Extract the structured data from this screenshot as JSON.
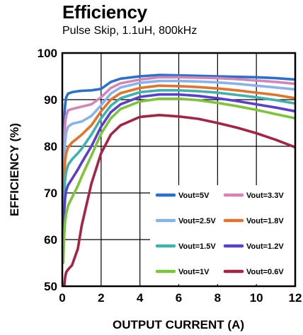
{
  "chart_data": {
    "type": "line",
    "title": "Efficiency",
    "subtitle": "Pulse Skip, 1.1uH, 800kHz",
    "xlabel": "OUTPUT CURRENT (A)",
    "ylabel": "EFFICIENCY (%)",
    "xlim": [
      0,
      12
    ],
    "ylim": [
      50,
      100
    ],
    "xticks": [
      0,
      2,
      4,
      6,
      8,
      10,
      12
    ],
    "yticks": [
      50,
      60,
      70,
      80,
      90,
      100
    ],
    "grid": true,
    "legend_position": "bottom-right",
    "series": [
      {
        "name": "Vout=5V",
        "color": "#2b6fd0",
        "x": [
          0.05,
          0.1,
          0.15,
          0.2,
          0.3,
          0.5,
          0.8,
          1,
          1.5,
          2,
          2.5,
          3,
          4,
          5,
          6,
          7,
          8,
          9,
          10,
          11,
          12
        ],
        "y": [
          80,
          86,
          89,
          90.5,
          91.3,
          91.6,
          91.8,
          91.9,
          92,
          92.3,
          93.8,
          94.5,
          95,
          95.3,
          95.2,
          95.1,
          95,
          94.9,
          94.8,
          94.6,
          94.3
        ]
      },
      {
        "name": "Vout=3.3V",
        "color": "#d385b5",
        "x": [
          0.05,
          0.1,
          0.15,
          0.2,
          0.3,
          0.5,
          0.8,
          1,
          1.5,
          2,
          2.5,
          3,
          4,
          5,
          6,
          7,
          8,
          9,
          10,
          11,
          12
        ],
        "y": [
          76,
          82,
          85,
          86.5,
          87.7,
          88,
          88.3,
          88.5,
          89,
          90.5,
          92.5,
          93.5,
          94.3,
          94.8,
          94.8,
          94.7,
          94.6,
          94.4,
          94.1,
          93.8,
          93.4
        ]
      },
      {
        "name": "Vout=2.5V",
        "color": "#86b3ea",
        "x": [
          0.05,
          0.1,
          0.15,
          0.2,
          0.3,
          0.5,
          0.8,
          1,
          1.5,
          2,
          2.5,
          3,
          4,
          5,
          6,
          7,
          8,
          9,
          10,
          11,
          12
        ],
        "y": [
          72,
          78,
          81,
          83,
          84.2,
          84.8,
          85.1,
          85.3,
          86.5,
          88.8,
          91.3,
          92.6,
          93.6,
          94,
          94,
          93.9,
          93.7,
          93.4,
          93,
          92.6,
          92.2
        ]
      },
      {
        "name": "Vout=1.8V",
        "color": "#e2732c",
        "x": [
          0.05,
          0.1,
          0.15,
          0.2,
          0.3,
          0.5,
          0.8,
          1,
          1.5,
          2,
          2.5,
          3,
          4,
          5,
          6,
          7,
          8,
          9,
          10,
          11,
          12
        ],
        "y": [
          68,
          74,
          77,
          78.5,
          79.8,
          80.8,
          81.8,
          82.5,
          84.5,
          87.5,
          90,
          91.4,
          92.5,
          93,
          92.9,
          92.7,
          92.4,
          92,
          91.5,
          91,
          90.3
        ]
      },
      {
        "name": "Vout=1.5V",
        "color": "#3fb1ae",
        "x": [
          0.05,
          0.1,
          0.15,
          0.2,
          0.3,
          0.5,
          0.8,
          1,
          1.5,
          2,
          2.5,
          3,
          4,
          5,
          6,
          7,
          8,
          9,
          10,
          11,
          12
        ],
        "y": [
          64,
          70,
          73,
          74.5,
          76,
          77.2,
          78.5,
          79.5,
          82.5,
          86,
          88.7,
          90.3,
          91.6,
          92,
          92,
          91.8,
          91.5,
          91,
          90.5,
          89.9,
          89.2
        ]
      },
      {
        "name": "Vout=1.2V",
        "color": "#5a3fcf",
        "x": [
          0.05,
          0.1,
          0.15,
          0.2,
          0.3,
          0.5,
          0.8,
          1,
          1.5,
          2,
          2.5,
          3,
          4,
          5,
          6,
          7,
          8,
          9,
          10,
          11,
          12
        ],
        "y": [
          60,
          66,
          69,
          70.5,
          71.7,
          73,
          75,
          76.5,
          80,
          84.2,
          87.3,
          89,
          90.6,
          91.1,
          91.1,
          90.8,
          90.3,
          89.7,
          89,
          88.3,
          87.5
        ]
      },
      {
        "name": "Vout=1V",
        "color": "#7bc43c",
        "x": [
          0.05,
          0.1,
          0.15,
          0.2,
          0.3,
          0.5,
          0.8,
          1,
          1.5,
          2,
          2.5,
          3,
          4,
          5,
          6,
          7,
          8,
          9,
          10,
          11,
          12
        ],
        "y": [
          55,
          61,
          64,
          65.5,
          67.3,
          69,
          71.5,
          73.5,
          78,
          82.7,
          86,
          88,
          89.6,
          90.2,
          90.2,
          89.9,
          89.3,
          88.6,
          87.8,
          86.9,
          86
        ]
      },
      {
        "name": "Vout=0.6V",
        "color": "#a32443",
        "x": [
          0.05,
          0.1,
          0.15,
          0.2,
          0.3,
          0.5,
          0.8,
          1,
          1.5,
          2,
          2.5,
          3,
          4,
          5,
          6,
          7,
          8,
          9,
          10,
          11,
          12
        ],
        "y": [
          47,
          50,
          52,
          53,
          53.6,
          54.5,
          58,
          63,
          72,
          78.5,
          82.5,
          84.5,
          86.3,
          86.7,
          86.4,
          85.9,
          85,
          84,
          82.8,
          81.4,
          79.8
        ]
      }
    ]
  }
}
